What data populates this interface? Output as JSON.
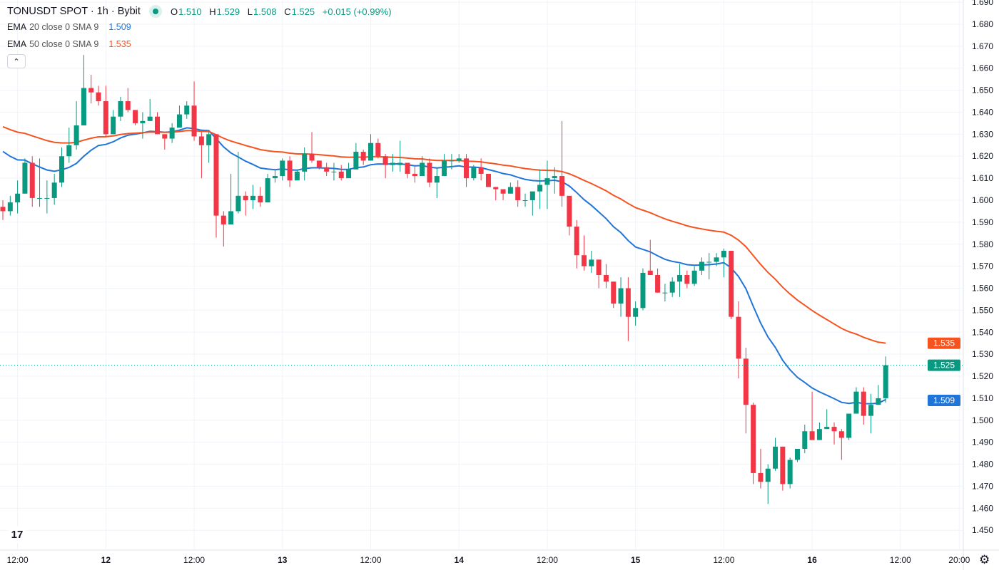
{
  "header": {
    "symbol_title": "TONUSDT SPOT · 1h · Bybit",
    "o_label": "O",
    "o_value": "1.510",
    "h_label": "H",
    "h_value": "1.529",
    "l_label": "L",
    "l_value": "1.508",
    "c_label": "C",
    "c_value": "1.525",
    "change": "+0.015 (+0.99%)"
  },
  "indicators": [
    {
      "name": "EMA",
      "params": "20 close 0 SMA 9",
      "value": "1.509",
      "color": "#2175d9"
    },
    {
      "name": "EMA",
      "params": "50 close 0 SMA 9",
      "value": "1.535",
      "color": "#f7531f"
    }
  ],
  "collapse_icon": "chevron-up-icon",
  "chart_data": {
    "type": "candlestick",
    "title": "TONUSDT SPOT · 1h · Bybit",
    "interval": "1h",
    "ylim": [
      1.441,
      1.691
    ],
    "grid": true,
    "colors": {
      "up": "#089981",
      "down": "#F23645",
      "ema20": "#2175d9",
      "ema50": "#f7531f",
      "last": "#089981"
    },
    "y_ticks": [
      "1.450",
      "1.460",
      "1.470",
      "1.480",
      "1.490",
      "1.500",
      "1.510",
      "1.520",
      "1.530",
      "1.540",
      "1.550",
      "1.560",
      "1.570",
      "1.580",
      "1.590",
      "1.600",
      "1.610",
      "1.620",
      "1.630",
      "1.640",
      "1.650",
      "1.660",
      "1.670",
      "1.680",
      "1.690"
    ],
    "x_ticks": [
      {
        "label": "12:00",
        "hour": 2
      },
      {
        "label": "12",
        "hour": 14
      },
      {
        "label": "12:00",
        "hour": 26
      },
      {
        "label": "13",
        "hour": 38
      },
      {
        "label": "12:00",
        "hour": 50
      },
      {
        "label": "14",
        "hour": 62
      },
      {
        "label": "12:00",
        "hour": 74
      },
      {
        "label": "15",
        "hour": 86
      },
      {
        "label": "12:00",
        "hour": 98
      },
      {
        "label": "16",
        "hour": 110
      },
      {
        "label": "12:00",
        "hour": 122
      },
      {
        "label": "20:00",
        "hour": 130
      }
    ],
    "price_labels": [
      {
        "text": "1.535",
        "value": 1.535,
        "color": "#f7531f"
      },
      {
        "text": "1.525",
        "value": 1.525,
        "color": "#089981"
      },
      {
        "text": "1.509",
        "value": 1.509,
        "color": "#2175d9"
      }
    ],
    "last_price": 1.525,
    "ema20_start": 1.625,
    "ema50_start": 1.635,
    "ohlc": [
      [
        1.597,
        1.6,
        1.591,
        1.595
      ],
      [
        1.595,
        1.602,
        1.593,
        1.599
      ],
      [
        1.599,
        1.609,
        1.594,
        1.603
      ],
      [
        1.603,
        1.619,
        1.603,
        1.617
      ],
      [
        1.617,
        1.62,
        1.597,
        1.601
      ],
      [
        1.601,
        1.619,
        1.597,
        1.601
      ],
      [
        1.601,
        1.609,
        1.594,
        1.601
      ],
      [
        1.601,
        1.612,
        1.598,
        1.608
      ],
      [
        1.608,
        1.624,
        1.606,
        1.62
      ],
      [
        1.62,
        1.633,
        1.617,
        1.625
      ],
      [
        1.625,
        1.645,
        1.623,
        1.634
      ],
      [
        1.634,
        1.666,
        1.634,
        1.651
      ],
      [
        1.651,
        1.657,
        1.644,
        1.649
      ],
      [
        1.649,
        1.652,
        1.643,
        1.645
      ],
      [
        1.645,
        1.652,
        1.629,
        1.63
      ],
      [
        1.63,
        1.641,
        1.63,
        1.638
      ],
      [
        1.638,
        1.647,
        1.636,
        1.645
      ],
      [
        1.645,
        1.651,
        1.64,
        1.641
      ],
      [
        1.641,
        1.641,
        1.634,
        1.635
      ],
      [
        1.635,
        1.64,
        1.628,
        1.636
      ],
      [
        1.636,
        1.646,
        1.636,
        1.638
      ],
      [
        1.638,
        1.64,
        1.63,
        1.63
      ],
      [
        1.63,
        1.63,
        1.623,
        1.628
      ],
      [
        1.628,
        1.635,
        1.626,
        1.633
      ],
      [
        1.633,
        1.643,
        1.633,
        1.639
      ],
      [
        1.639,
        1.645,
        1.637,
        1.643
      ],
      [
        1.643,
        1.654,
        1.627,
        1.629
      ],
      [
        1.629,
        1.631,
        1.61,
        1.625
      ],
      [
        1.625,
        1.631,
        1.617,
        1.63
      ],
      [
        1.63,
        1.63,
        1.583,
        1.593
      ],
      [
        1.593,
        1.595,
        1.579,
        1.589
      ],
      [
        1.589,
        1.612,
        1.589,
        1.595
      ],
      [
        1.595,
        1.622,
        1.594,
        1.602
      ],
      [
        1.602,
        1.604,
        1.593,
        1.6
      ],
      [
        1.6,
        1.607,
        1.596,
        1.602
      ],
      [
        1.602,
        1.606,
        1.597,
        1.599
      ],
      [
        1.599,
        1.612,
        1.599,
        1.61
      ],
      [
        1.61,
        1.614,
        1.608,
        1.611
      ],
      [
        1.611,
        1.619,
        1.609,
        1.618
      ],
      [
        1.618,
        1.62,
        1.606,
        1.609
      ],
      [
        1.609,
        1.614,
        1.609,
        1.613
      ],
      [
        1.613,
        1.624,
        1.609,
        1.621
      ],
      [
        1.621,
        1.631,
        1.617,
        1.618
      ],
      [
        1.618,
        1.618,
        1.614,
        1.615
      ],
      [
        1.615,
        1.617,
        1.611,
        1.613
      ],
      [
        1.613,
        1.617,
        1.609,
        1.613
      ],
      [
        1.613,
        1.616,
        1.609,
        1.61
      ],
      [
        1.61,
        1.617,
        1.61,
        1.614
      ],
      [
        1.614,
        1.626,
        1.614,
        1.622
      ],
      [
        1.622,
        1.623,
        1.616,
        1.618
      ],
      [
        1.618,
        1.63,
        1.618,
        1.626
      ],
      [
        1.626,
        1.628,
        1.619,
        1.62
      ],
      [
        1.62,
        1.621,
        1.61,
        1.616
      ],
      [
        1.616,
        1.621,
        1.613,
        1.617
      ],
      [
        1.616,
        1.627,
        1.613,
        1.617
      ],
      [
        1.617,
        1.617,
        1.61,
        1.612
      ],
      [
        1.612,
        1.616,
        1.608,
        1.611
      ],
      [
        1.611,
        1.62,
        1.611,
        1.617
      ],
      [
        1.617,
        1.619,
        1.606,
        1.608
      ],
      [
        1.608,
        1.615,
        1.601,
        1.611
      ],
      [
        1.611,
        1.621,
        1.611,
        1.618
      ],
      [
        1.618,
        1.621,
        1.614,
        1.618
      ],
      [
        1.618,
        1.621,
        1.617,
        1.619
      ],
      [
        1.619,
        1.621,
        1.606,
        1.61
      ],
      [
        1.61,
        1.616,
        1.609,
        1.615
      ],
      [
        1.615,
        1.619,
        1.609,
        1.612
      ],
      [
        1.612,
        1.612,
        1.606,
        1.606
      ],
      [
        1.606,
        1.606,
        1.6,
        1.605
      ],
      [
        1.605,
        1.605,
        1.6,
        1.603
      ],
      [
        1.603,
        1.608,
        1.603,
        1.606
      ],
      [
        1.606,
        1.609,
        1.597,
        1.6
      ],
      [
        1.6,
        1.603,
        1.597,
        1.6
      ],
      [
        1.6,
        1.604,
        1.593,
        1.604
      ],
      [
        1.604,
        1.614,
        1.596,
        1.607
      ],
      [
        1.607,
        1.618,
        1.596,
        1.61
      ],
      [
        1.61,
        1.615,
        1.603,
        1.611
      ],
      [
        1.611,
        1.636,
        1.597,
        1.602
      ],
      [
        1.602,
        1.602,
        1.584,
        1.588
      ],
      [
        1.588,
        1.591,
        1.569,
        1.575
      ],
      [
        1.575,
        1.584,
        1.568,
        1.57
      ],
      [
        1.57,
        1.577,
        1.567,
        1.573
      ],
      [
        1.573,
        1.573,
        1.56,
        1.566
      ],
      [
        1.566,
        1.571,
        1.56,
        1.563
      ],
      [
        1.563,
        1.563,
        1.551,
        1.553
      ],
      [
        1.553,
        1.565,
        1.547,
        1.56
      ],
      [
        1.56,
        1.565,
        1.536,
        1.547
      ],
      [
        1.547,
        1.554,
        1.543,
        1.551
      ],
      [
        1.551,
        1.569,
        1.55,
        1.567
      ],
      [
        1.568,
        1.582,
        1.566,
        1.566
      ],
      [
        1.566,
        1.569,
        1.558,
        1.558
      ],
      [
        1.558,
        1.562,
        1.554,
        1.558
      ],
      [
        1.558,
        1.565,
        1.556,
        1.563
      ],
      [
        1.563,
        1.571,
        1.556,
        1.566
      ],
      [
        1.566,
        1.568,
        1.56,
        1.562
      ],
      [
        1.562,
        1.57,
        1.561,
        1.568
      ],
      [
        1.568,
        1.574,
        1.566,
        1.572
      ],
      [
        1.572,
        1.576,
        1.564,
        1.572
      ],
      [
        1.572,
        1.576,
        1.57,
        1.574
      ],
      [
        1.574,
        1.578,
        1.565,
        1.577
      ],
      [
        1.577,
        1.577,
        1.546,
        1.547
      ],
      [
        1.547,
        1.554,
        1.519,
        1.528
      ],
      [
        1.528,
        1.533,
        1.494,
        1.507
      ],
      [
        1.507,
        1.508,
        1.471,
        1.476
      ],
      [
        1.476,
        1.487,
        1.469,
        1.472
      ],
      [
        1.472,
        1.48,
        1.462,
        1.478
      ],
      [
        1.478,
        1.492,
        1.477,
        1.488
      ],
      [
        1.488,
        1.488,
        1.468,
        1.471
      ],
      [
        1.471,
        1.483,
        1.469,
        1.482
      ],
      [
        1.482,
        1.487,
        1.481,
        1.487
      ],
      [
        1.487,
        1.498,
        1.485,
        1.495
      ],
      [
        1.495,
        1.513,
        1.491,
        1.491
      ],
      [
        1.491,
        1.499,
        1.491,
        1.496
      ],
      [
        1.496,
        1.505,
        1.496,
        1.497
      ],
      [
        1.497,
        1.499,
        1.489,
        1.495
      ],
      [
        1.495,
        1.496,
        1.482,
        1.492
      ],
      [
        1.492,
        1.503,
        1.491,
        1.503
      ],
      [
        1.503,
        1.515,
        1.503,
        1.513
      ],
      [
        1.513,
        1.515,
        1.498,
        1.502
      ],
      [
        1.502,
        1.512,
        1.494,
        1.507
      ],
      [
        1.507,
        1.516,
        1.507,
        1.51
      ],
      [
        1.51,
        1.529,
        1.508,
        1.525
      ]
    ]
  },
  "footer": {
    "logo_text": "17",
    "settings_icon": "gear-icon"
  }
}
